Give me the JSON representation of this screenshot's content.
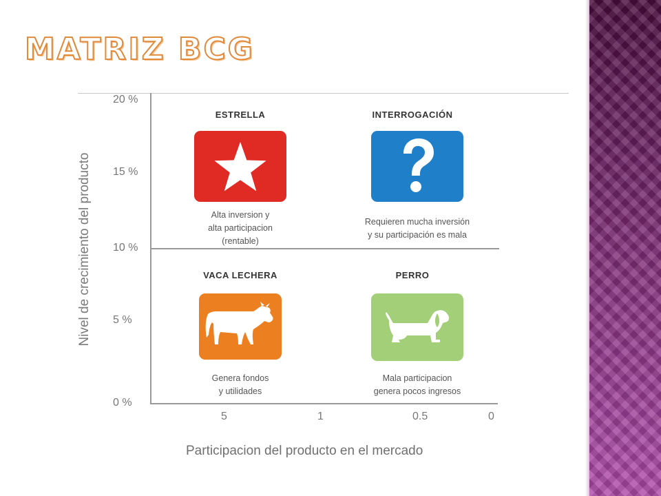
{
  "slide": {
    "title": "MATRIZ BCG"
  },
  "diagram": {
    "y_axis_title": "Nivel de crecimiento del producto",
    "x_axis_title": "Participacion del producto en el mercado",
    "y_ticks": [
      "20 %",
      "15 %",
      "10 %",
      "5 %",
      "0 %"
    ],
    "x_ticks": [
      "5",
      "1",
      "0.5",
      "0"
    ],
    "quadrants": [
      {
        "label": "ESTRELLA",
        "icon": "star-icon",
        "color": "#e02a24",
        "description": [
          "Alta inversion y",
          "alta participacion",
          "(rentable)"
        ]
      },
      {
        "label": "INTERROGACIÓN",
        "icon": "question-mark-icon",
        "color": "#1f7fc8",
        "description": [
          "Requieren mucha inversión",
          "y su participación es mala"
        ]
      },
      {
        "label": "VACA LECHERA",
        "icon": "cow-icon",
        "color": "#ec7f1f",
        "description": [
          "Genera fondos",
          "y utilidades"
        ]
      },
      {
        "label": "PERRO",
        "icon": "dog-icon",
        "color": "#a2cf78",
        "description": [
          "Mala participacion",
          "genera pocos ingresos"
        ]
      }
    ]
  }
}
